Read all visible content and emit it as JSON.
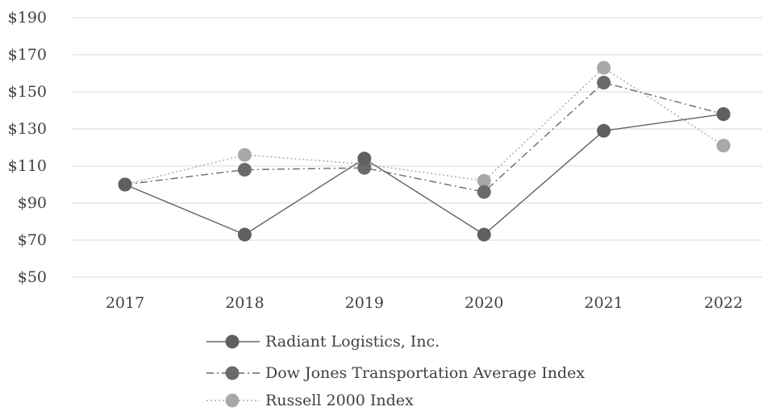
{
  "chart_data": {
    "type": "line",
    "title": "",
    "xlabel": "",
    "ylabel": "",
    "categories": [
      "2017",
      "2018",
      "2019",
      "2020",
      "2021",
      "2022"
    ],
    "ylim": [
      50,
      190
    ],
    "yticks": [
      50,
      70,
      90,
      110,
      130,
      150,
      170,
      190
    ],
    "ytick_labels": [
      "$50",
      "$70",
      "$90",
      "$110",
      "$130",
      "$150",
      "$170",
      "$190"
    ],
    "grid": true,
    "legend": "bottom",
    "series": [
      {
        "name": "Radiant Logistics, Inc.",
        "values": [
          100,
          73,
          114,
          73,
          129,
          138
        ],
        "color": "#606060",
        "dash": "solid"
      },
      {
        "name": "Dow Jones Transportation Average Index",
        "values": [
          100,
          108,
          109,
          96,
          155,
          138
        ],
        "color": "#6a6a6a",
        "dash": "dash-dot"
      },
      {
        "name": "Russell 2000 Index",
        "values": [
          100,
          116,
          111,
          102,
          163,
          121
        ],
        "color": "#a8a8a8",
        "dash": "dotted"
      }
    ]
  }
}
